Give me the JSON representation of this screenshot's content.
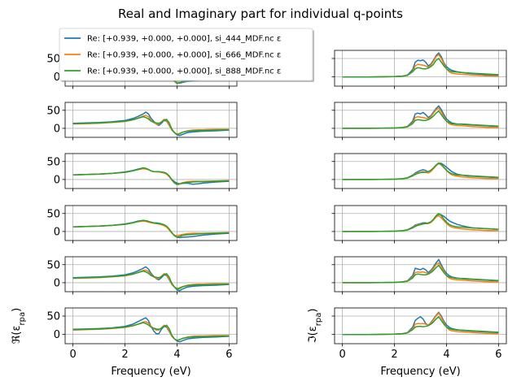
{
  "chart_data": {
    "type": "line",
    "title": "Real and Imaginary part for individual q-points",
    "grid": true,
    "layout": {
      "rows": 6,
      "cols": 2
    },
    "xlabel": "Frequency (eV)",
    "xlim": [
      -0.3,
      6.3
    ],
    "xticks": [
      0,
      2,
      4,
      6
    ],
    "ylim": [
      -25,
      72
    ],
    "yticks": [
      0,
      50
    ],
    "row_ylabels": {
      "left": "ℜ(ε_rpa)",
      "right": "ℑ(ε_rpa)"
    },
    "legend": {
      "placement": "top-left",
      "entries": [
        {
          "name": "Re: [+0.939, +0.000, +0.000], si_444_MDF.nc ε",
          "color": "#1f77b4"
        },
        {
          "name": "Re: [+0.939, +0.000, +0.000], si_666_MDF.nc ε",
          "color": "#ff7f0e"
        },
        {
          "name": "Re: [+0.939, +0.000, +0.000], si_888_MDF.nc ε",
          "color": "#2ca02c"
        }
      ]
    },
    "colors": [
      "#1f77b4",
      "#ff7f0e",
      "#2ca02c"
    ],
    "x": [
      0,
      0.5,
      1.0,
      1.5,
      2.0,
      2.3,
      2.5,
      2.7,
      2.8,
      2.9,
      3.0,
      3.1,
      3.2,
      3.3,
      3.4,
      3.5,
      3.6,
      3.7,
      3.8,
      3.9,
      4.0,
      4.1,
      4.2,
      4.4,
      4.6,
      4.8,
      5.0,
      5.5,
      6.0
    ],
    "panels": [
      {
        "row": 0,
        "col": 0,
        "series": [
          [
            14,
            15,
            16,
            18,
            22,
            26,
            32,
            40,
            45,
            40,
            25,
            18,
            12,
            10,
            15,
            22,
            18,
            5,
            -5,
            -10,
            -15,
            -17,
            -15,
            -12,
            -10,
            -9,
            -8,
            -7,
            -5
          ],
          [
            12,
            13,
            14,
            16,
            19,
            22,
            27,
            33,
            35,
            30,
            20,
            15,
            12,
            12,
            18,
            25,
            22,
            10,
            -5,
            -12,
            -16,
            -15,
            -12,
            -8,
            -6,
            -5,
            -5,
            -4,
            -3
          ],
          [
            13,
            14,
            15,
            17,
            20,
            23,
            28,
            32,
            30,
            26,
            20,
            17,
            15,
            14,
            17,
            22,
            25,
            15,
            -2,
            -12,
            -18,
            -16,
            -12,
            -9,
            -7,
            -6,
            -6,
            -5,
            -4
          ]
        ]
      },
      {
        "row": 0,
        "col": 1,
        "series": [
          [
            0,
            0,
            0,
            0.3,
            1,
            2,
            5,
            20,
            40,
            45,
            44,
            46,
            40,
            30,
            35,
            45,
            58,
            65,
            55,
            38,
            28,
            22,
            18,
            14,
            12,
            10,
            9,
            6,
            4
          ],
          [
            0,
            0,
            0,
            0.3,
            1,
            2,
            5,
            15,
            30,
            34,
            33,
            32,
            30,
            26,
            32,
            42,
            55,
            60,
            50,
            35,
            22,
            14,
            10,
            8,
            7,
            6,
            5,
            3,
            2
          ],
          [
            0,
            0,
            0,
            0.3,
            1,
            2,
            4,
            14,
            22,
            25,
            24,
            22,
            22,
            24,
            28,
            34,
            45,
            50,
            40,
            30,
            22,
            17,
            14,
            13,
            12,
            11,
            10,
            8,
            6
          ]
        ]
      },
      {
        "row": 1,
        "col": 0,
        "series": [
          [
            14,
            15,
            16,
            18,
            22,
            27,
            33,
            40,
            45,
            40,
            28,
            20,
            12,
            8,
            14,
            22,
            20,
            8,
            -5,
            -12,
            -18,
            -20,
            -17,
            -12,
            -10,
            -9,
            -8,
            -7,
            -5
          ],
          [
            12,
            13,
            14,
            16,
            19,
            23,
            28,
            34,
            36,
            32,
            22,
            16,
            12,
            12,
            18,
            25,
            22,
            10,
            -5,
            -12,
            -16,
            -14,
            -11,
            -7,
            -5,
            -4,
            -4,
            -3,
            -3
          ],
          [
            13,
            14,
            15,
            17,
            20,
            24,
            28,
            32,
            30,
            26,
            20,
            17,
            15,
            14,
            17,
            22,
            25,
            15,
            -2,
            -12,
            -18,
            -15,
            -11,
            -8,
            -7,
            -6,
            -6,
            -5,
            -4
          ]
        ]
      },
      {
        "row": 1,
        "col": 1,
        "series": [
          [
            0,
            0,
            0,
            0.3,
            1,
            2,
            5,
            20,
            40,
            42,
            40,
            44,
            38,
            30,
            35,
            45,
            55,
            62,
            52,
            38,
            26,
            20,
            15,
            12,
            11,
            10,
            9,
            7,
            5
          ],
          [
            0,
            0,
            0,
            0.3,
            1,
            2,
            5,
            15,
            30,
            32,
            31,
            30,
            28,
            26,
            32,
            42,
            52,
            56,
            46,
            32,
            20,
            13,
            10,
            8,
            7,
            6,
            5,
            3,
            2
          ],
          [
            0,
            0,
            0,
            0.3,
            1,
            2,
            4,
            13,
            22,
            24,
            23,
            22,
            22,
            24,
            28,
            34,
            42,
            48,
            38,
            28,
            20,
            16,
            13,
            12,
            12,
            11,
            10,
            8,
            6
          ]
        ]
      },
      {
        "row": 2,
        "col": 0,
        "series": [
          [
            13,
            14,
            15,
            17,
            21,
            25,
            29,
            32,
            31,
            28,
            24,
            22,
            22,
            22,
            20,
            18,
            15,
            8,
            0,
            -6,
            -10,
            -12,
            -11,
            -10,
            -13,
            -12,
            -10,
            -7,
            -5
          ],
          [
            13,
            14,
            15,
            17,
            20,
            24,
            27,
            30,
            29,
            27,
            24,
            22,
            21,
            21,
            20,
            18,
            15,
            8,
            -2,
            -10,
            -14,
            -12,
            -9,
            -6,
            -5,
            -5,
            -5,
            -4,
            -3
          ],
          [
            13,
            14,
            15,
            17,
            20,
            24,
            28,
            32,
            31,
            28,
            24,
            22,
            22,
            22,
            21,
            20,
            17,
            10,
            0,
            -9,
            -14,
            -13,
            -10,
            -8,
            -7,
            -6,
            -6,
            -5,
            -4
          ]
        ]
      },
      {
        "row": 2,
        "col": 1,
        "series": [
          [
            0,
            0,
            0,
            0.3,
            1,
            2,
            5,
            12,
            18,
            22,
            25,
            27,
            25,
            20,
            25,
            32,
            40,
            45,
            45,
            40,
            34,
            28,
            22,
            15,
            12,
            10,
            9,
            7,
            5
          ],
          [
            0,
            0,
            0,
            0.3,
            1,
            2,
            5,
            10,
            16,
            18,
            20,
            22,
            20,
            18,
            22,
            30,
            38,
            44,
            40,
            33,
            25,
            18,
            13,
            9,
            7,
            6,
            5,
            3,
            2
          ],
          [
            0,
            0,
            0,
            0.3,
            1,
            2,
            4,
            10,
            14,
            17,
            19,
            20,
            20,
            22,
            26,
            32,
            40,
            46,
            42,
            34,
            26,
            20,
            16,
            13,
            12,
            11,
            10,
            8,
            6
          ]
        ]
      },
      {
        "row": 3,
        "col": 0,
        "series": [
          [
            13,
            14,
            15,
            17,
            21,
            25,
            29,
            31,
            30,
            28,
            25,
            24,
            24,
            23,
            21,
            18,
            14,
            6,
            -4,
            -12,
            -16,
            -17,
            -16,
            -15,
            -14,
            -12,
            -10,
            -7,
            -5
          ],
          [
            13,
            14,
            15,
            17,
            20,
            24,
            27,
            29,
            28,
            26,
            24,
            23,
            22,
            21,
            19,
            16,
            12,
            4,
            -5,
            -10,
            -12,
            -10,
            -8,
            -6,
            -5,
            -5,
            -5,
            -4,
            -3
          ],
          [
            13,
            14,
            15,
            17,
            20,
            24,
            28,
            31,
            30,
            28,
            26,
            24,
            23,
            22,
            21,
            19,
            15,
            7,
            -3,
            -12,
            -16,
            -14,
            -11,
            -9,
            -8,
            -7,
            -6,
            -5,
            -4
          ]
        ]
      },
      {
        "row": 3,
        "col": 1,
        "series": [
          [
            0,
            0,
            0,
            0.3,
            1,
            2,
            5,
            12,
            18,
            20,
            22,
            24,
            24,
            22,
            25,
            32,
            42,
            48,
            46,
            42,
            36,
            30,
            26,
            20,
            16,
            13,
            10,
            8,
            6
          ],
          [
            0,
            0,
            0,
            0.3,
            1,
            2,
            5,
            10,
            16,
            18,
            20,
            22,
            22,
            22,
            25,
            32,
            40,
            44,
            38,
            30,
            22,
            16,
            12,
            9,
            7,
            6,
            5,
            3,
            2
          ],
          [
            0,
            0,
            0,
            0.3,
            1,
            2,
            4,
            10,
            14,
            17,
            19,
            21,
            22,
            24,
            27,
            34,
            44,
            50,
            44,
            34,
            26,
            20,
            16,
            13,
            12,
            11,
            10,
            8,
            6
          ]
        ]
      },
      {
        "row": 4,
        "col": 0,
        "series": [
          [
            14,
            15,
            16,
            18,
            22,
            27,
            33,
            40,
            44,
            38,
            26,
            18,
            11,
            8,
            14,
            22,
            20,
            8,
            -5,
            -12,
            -20,
            -22,
            -18,
            -12,
            -10,
            -9,
            -8,
            -7,
            -5
          ],
          [
            12,
            13,
            14,
            16,
            19,
            23,
            28,
            34,
            35,
            31,
            22,
            16,
            12,
            12,
            18,
            25,
            22,
            10,
            -5,
            -12,
            -16,
            -14,
            -11,
            -7,
            -5,
            -4,
            -4,
            -3,
            -3
          ],
          [
            13,
            14,
            15,
            17,
            20,
            24,
            28,
            32,
            30,
            26,
            20,
            17,
            15,
            14,
            17,
            22,
            25,
            15,
            -2,
            -12,
            -18,
            -16,
            -12,
            -8,
            -7,
            -6,
            -6,
            -5,
            -4
          ]
        ]
      },
      {
        "row": 4,
        "col": 1,
        "series": [
          [
            0,
            0,
            0,
            0.3,
            1,
            2,
            5,
            20,
            40,
            38,
            36,
            40,
            36,
            28,
            34,
            44,
            55,
            64,
            50,
            36,
            26,
            20,
            16,
            13,
            11,
            10,
            9,
            7,
            5
          ],
          [
            0,
            0,
            0,
            0.3,
            1,
            2,
            5,
            15,
            28,
            30,
            29,
            30,
            28,
            25,
            30,
            40,
            50,
            55,
            45,
            32,
            20,
            13,
            10,
            8,
            7,
            6,
            5,
            3,
            2
          ],
          [
            0,
            0,
            0,
            0.3,
            1,
            2,
            4,
            13,
            22,
            24,
            23,
            22,
            22,
            24,
            28,
            34,
            42,
            48,
            38,
            28,
            20,
            16,
            14,
            12,
            12,
            11,
            10,
            8,
            6
          ]
        ]
      },
      {
        "row": 5,
        "col": 0,
        "series": [
          [
            14,
            15,
            16,
            18,
            22,
            28,
            35,
            42,
            45,
            38,
            22,
            10,
            2,
            2,
            14,
            22,
            20,
            8,
            -5,
            -12,
            -18,
            -20,
            -17,
            -12,
            -10,
            -9,
            -8,
            -7,
            -5
          ],
          [
            12,
            13,
            14,
            16,
            19,
            23,
            28,
            34,
            35,
            31,
            22,
            16,
            12,
            12,
            18,
            25,
            22,
            10,
            -5,
            -12,
            -16,
            -14,
            -11,
            -7,
            -5,
            -4,
            -4,
            -3,
            -3
          ],
          [
            13,
            14,
            15,
            17,
            20,
            24,
            28,
            32,
            30,
            26,
            20,
            17,
            15,
            14,
            17,
            22,
            25,
            15,
            -2,
            -12,
            -16,
            -14,
            -11,
            -8,
            -7,
            -6,
            -6,
            -5,
            -4
          ]
        ]
      },
      {
        "row": 5,
        "col": 1,
        "series": [
          [
            0,
            0,
            0,
            0.3,
            1,
            2,
            5,
            20,
            38,
            44,
            48,
            42,
            30,
            25,
            32,
            42,
            52,
            60,
            50,
            36,
            26,
            20,
            16,
            13,
            11,
            10,
            9,
            7,
            5
          ],
          [
            0,
            0,
            0,
            0.3,
            1,
            2,
            5,
            15,
            28,
            30,
            29,
            30,
            28,
            25,
            30,
            40,
            50,
            58,
            46,
            32,
            20,
            13,
            10,
            8,
            7,
            6,
            5,
            3,
            2
          ],
          [
            0,
            0,
            0,
            0.3,
            1,
            2,
            4,
            13,
            20,
            22,
            22,
            21,
            22,
            24,
            28,
            34,
            42,
            48,
            38,
            28,
            20,
            16,
            14,
            12,
            12,
            11,
            10,
            8,
            6
          ]
        ]
      }
    ]
  }
}
